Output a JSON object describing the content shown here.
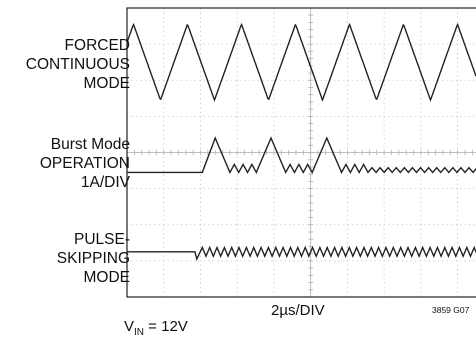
{
  "chart_data": {
    "type": "line",
    "title": "",
    "xlabel": "2µs/DIV",
    "ylabel": "",
    "grid": true,
    "x_divisions": 10,
    "y_divisions": 8,
    "channels": [
      {
        "label_lines": [
          "FORCED",
          "CONTINUOUS",
          "MODE"
        ],
        "waveform": "triangle",
        "period_div": 1.47,
        "amplitude_div": 1.05,
        "center_div": 1.5
      },
      {
        "label_lines": [
          "Burst Mode",
          "OPERATION",
          "1A/DIV"
        ],
        "waveform": "burst",
        "baseline_div": 4.55,
        "burst_start_div": 2.05,
        "peak_div": 0.95
      },
      {
        "label_lines": [
          "PULSE-",
          "SKIPPING",
          "MODE"
        ],
        "waveform": "pulse-skipping",
        "baseline_div": 6.75,
        "start_div": 1.85,
        "ripple_div": 0.12
      }
    ],
    "figure_id": "3859 G07",
    "condition_text": "V",
    "condition_sub": "IN",
    "condition_value": " = 12V"
  }
}
